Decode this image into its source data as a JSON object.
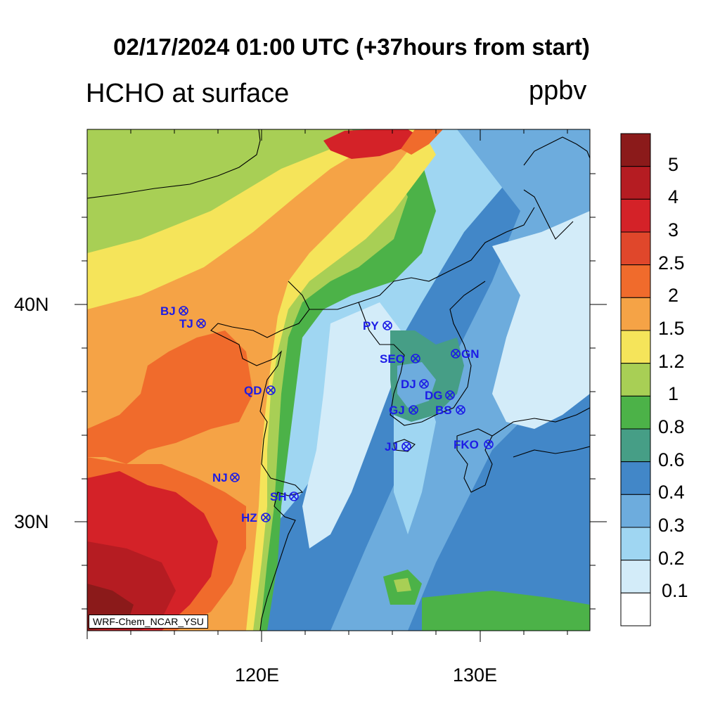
{
  "title": "02/17/2024 01:00 UTC (+37hours from start)",
  "variable": "HCHO at surface",
  "units": "ppbv",
  "model_credit": "WRF-Chem_NCAR_YSU",
  "axes": {
    "lat_labels": [
      "40N",
      "30N"
    ],
    "lon_labels": [
      "120E",
      "130E"
    ]
  },
  "colorbar": {
    "labels": [
      "5",
      "4",
      "3",
      "2.5",
      "2",
      "1.5",
      "1.2",
      "1",
      "0.8",
      "0.6",
      "0.4",
      "0.3",
      "0.2",
      "0.1"
    ],
    "colors": [
      "#8b1a1a",
      "#b51c22",
      "#d42228",
      "#e0472b",
      "#f06b2c",
      "#f5a346",
      "#f5e45a",
      "#a8cf55",
      "#4cb248",
      "#469e86",
      "#4287c8",
      "#6dacdd",
      "#9fd6f2",
      "#d3ecf9",
      "#ffffff"
    ]
  },
  "stations": [
    {
      "code": "BJ"
    },
    {
      "code": "TJ"
    },
    {
      "code": "PY"
    },
    {
      "code": "SEO"
    },
    {
      "code": "GN"
    },
    {
      "code": "QD"
    },
    {
      "code": "DJ"
    },
    {
      "code": "DG"
    },
    {
      "code": "GJ"
    },
    {
      "code": "BS"
    },
    {
      "code": "JJ"
    },
    {
      "code": "FKO"
    },
    {
      "code": "NJ"
    },
    {
      "code": "SH"
    },
    {
      "code": "HZ"
    }
  ]
}
